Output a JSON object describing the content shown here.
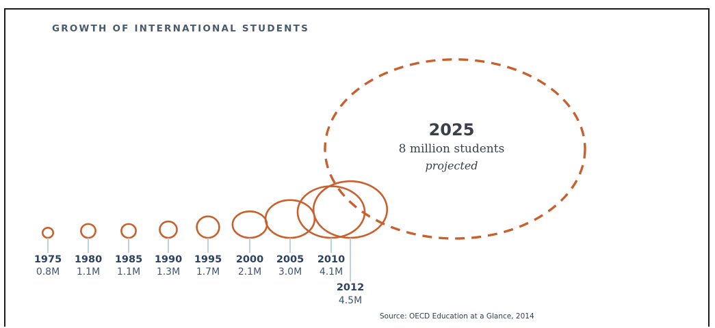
{
  "title": "GROWTH OF INTERNATIONAL STUDENTS",
  "source": "Source: OECD Education at a Glance, 2014",
  "colors": {
    "circle": "#c95f2c",
    "connector": "#a7c4cf",
    "year_text": "#2d4260",
    "value_text": "#3d5372"
  },
  "chart_data": {
    "type": "bubble",
    "unit": "million students",
    "series": [
      {
        "year": "1975",
        "value": 0.8,
        "label": "0.8M"
      },
      {
        "year": "1980",
        "value": 1.1,
        "label": "1.1M"
      },
      {
        "year": "1985",
        "value": 1.1,
        "label": "1.1M"
      },
      {
        "year": "1990",
        "value": 1.3,
        "label": "1.3M"
      },
      {
        "year": "1995",
        "value": 1.7,
        "label": "1.7M"
      },
      {
        "year": "2000",
        "value": 2.1,
        "label": "2.1M"
      },
      {
        "year": "2005",
        "value": 3.0,
        "label": "3.0M"
      },
      {
        "year": "2010",
        "value": 4.1,
        "label": "4.1M"
      },
      {
        "year": "2012",
        "value": 4.5,
        "label": "4.5M"
      }
    ],
    "projection": {
      "year": "2025",
      "value": 8,
      "label": "8 million students",
      "note": "projected"
    }
  }
}
